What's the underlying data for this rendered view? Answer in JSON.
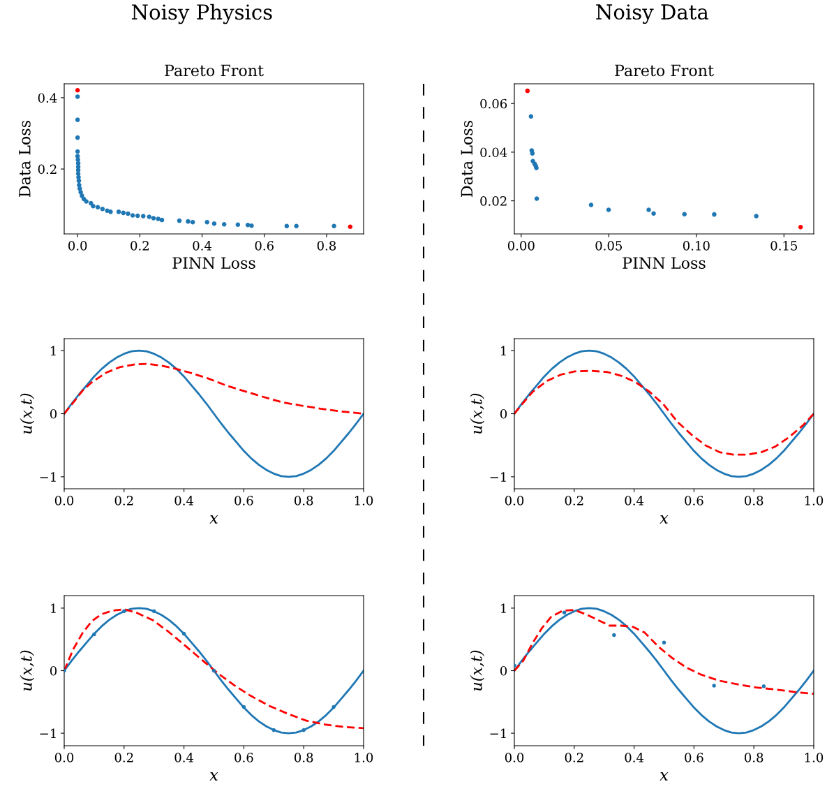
{
  "chart_data": [
    {
      "type": "scatter",
      "title": "Pareto Front",
      "xlabel": "PINN Loss",
      "ylabel": "Data Loss",
      "annotations": [
        "Noisy Physics"
      ],
      "xlim": [
        -0.043,
        0.919
      ],
      "ylim": [
        0.018,
        0.439
      ],
      "xticks": [
        {
          "value": 0,
          "label": "0.0"
        },
        {
          "value": 0.2,
          "label": "0.2"
        },
        {
          "value": 0.4,
          "label": "0.4"
        },
        {
          "value": 0.6,
          "label": "0.6"
        },
        {
          "value": 0.8,
          "label": "0.8"
        }
      ],
      "yticks": [
        0.2,
        0.4
      ],
      "grid": false,
      "marker": "circle",
      "series": [
        {
          "color": "#1f77b4",
          "x": [
            0,
            0,
            0,
            0,
            0,
            0.001,
            0.002,
            0.002,
            0.002,
            0.002,
            0.003,
            0.004,
            0.005,
            0.007,
            0.01,
            0.014,
            0.02,
            0.028,
            0.043,
            0.05,
            0.065,
            0.08,
            0.095,
            0.106,
            0.132,
            0.147,
            0.162,
            0.177,
            0.193,
            0.211,
            0.23,
            0.244,
            0.259,
            0.271,
            0.327,
            0.355,
            0.37,
            0.416,
            0.439,
            0.471,
            0.515,
            0.547,
            0.559,
            0.672,
            0.703,
            0.824
          ],
          "values": [
            0.403,
            0.338,
            0.288,
            0.249,
            0.236,
            0.226,
            0.216,
            0.206,
            0.197,
            0.187,
            0.177,
            0.167,
            0.155,
            0.145,
            0.135,
            0.125,
            0.116,
            0.109,
            0.104,
            0.096,
            0.093,
            0.088,
            0.083,
            0.08,
            0.08,
            0.077,
            0.075,
            0.07,
            0.069,
            0.068,
            0.066,
            0.062,
            0.06,
            0.057,
            0.055,
            0.053,
            0.051,
            0.051,
            0.047,
            0.045,
            0.044,
            0.043,
            0.041,
            0.04,
            0.04,
            0.04
          ]
        },
        {
          "color": "#ff0000",
          "x": [
            0.0,
            0.876
          ],
          "values": [
            0.421,
            0.038
          ]
        }
      ]
    },
    {
      "type": "scatter",
      "title": "Pareto Front",
      "xlabel": "PINN Loss",
      "ylabel": "Data Loss",
      "annotations": [
        "Noisy Data"
      ],
      "xlim": [
        -0.0039,
        0.167
      ],
      "ylim": [
        0.0064,
        0.0681
      ],
      "xticks": [
        {
          "value": 0,
          "label": "0.00"
        },
        0.05,
        {
          "value": 0.1,
          "label": "0.10"
        },
        0.15
      ],
      "yticks": [
        0.02,
        0.04,
        0.06
      ],
      "grid": false,
      "marker": "circle",
      "series": [
        {
          "color": "#1f77b4",
          "x": [
            0.0056,
            0.006,
            0.0064,
            0.0067,
            0.0077,
            0.0083,
            0.0087,
            0.0089,
            0.0399,
            0.0499,
            0.0728,
            0.0756,
            0.0932,
            0.1102,
            0.1342
          ],
          "values": [
            0.0547,
            0.0407,
            0.0395,
            0.0363,
            0.0352,
            0.0344,
            0.0335,
            0.0209,
            0.0183,
            0.0163,
            0.0163,
            0.0148,
            0.0145,
            0.0144,
            0.0137
          ]
        },
        {
          "color": "#ff0000",
          "x": [
            0.0036,
            0.1595
          ],
          "values": [
            0.0652,
            0.0092
          ]
        }
      ]
    },
    {
      "type": "line",
      "xlabel": "x",
      "ylabel": "u(x,t)",
      "xlim": [
        0,
        1
      ],
      "ylim": [
        -1.19,
        1.19
      ],
      "xticks": [
        {
          "value": 0,
          "label": "0.0"
        },
        {
          "value": 0.2,
          "label": "0.2"
        },
        {
          "value": 0.4,
          "label": "0.4"
        },
        {
          "value": 0.6,
          "label": "0.6"
        },
        {
          "value": 0.8,
          "label": "0.8"
        },
        {
          "value": 1,
          "label": "1.0"
        }
      ],
      "yticks": [
        -1,
        0,
        1
      ],
      "grid": false,
      "marker": "none",
      "series": [
        {
          "color": "#1f77b4",
          "line_style": "solid",
          "x": [
            0,
            0.025,
            0.05,
            0.075,
            0.1,
            0.125,
            0.15,
            0.175,
            0.2,
            0.225,
            0.25,
            0.275,
            0.3,
            0.325,
            0.35,
            0.375,
            0.4,
            0.425,
            0.45,
            0.475,
            0.5,
            0.525,
            0.55,
            0.575,
            0.6,
            0.625,
            0.65,
            0.675,
            0.7,
            0.725,
            0.75,
            0.775,
            0.8,
            0.825,
            0.85,
            0.875,
            0.9,
            0.925,
            0.95,
            0.975,
            1
          ],
          "values": [
            0,
            0.16,
            0.31,
            0.45,
            0.59,
            0.71,
            0.81,
            0.89,
            0.95,
            0.99,
            1,
            0.99,
            0.95,
            0.89,
            0.81,
            0.71,
            0.59,
            0.45,
            0.31,
            0.16,
            0,
            -0.16,
            -0.31,
            -0.45,
            -0.59,
            -0.71,
            -0.81,
            -0.89,
            -0.95,
            -0.99,
            -1,
            -0.99,
            -0.95,
            -0.89,
            -0.81,
            -0.71,
            -0.59,
            -0.45,
            -0.31,
            -0.16,
            0
          ]
        },
        {
          "color": "#ff0000",
          "line_style": "dashed",
          "x": [
            0,
            0.031,
            0.062,
            0.093,
            0.14,
            0.187,
            0.233,
            0.28,
            0.327,
            0.374,
            0.42,
            0.48,
            0.545,
            0.607,
            0.67,
            0.73,
            0.79,
            0.856,
            0.918,
            1
          ],
          "values": [
            0,
            0.18,
            0.37,
            0.5,
            0.65,
            0.74,
            0.78,
            0.79,
            0.76,
            0.71,
            0.65,
            0.56,
            0.44,
            0.35,
            0.26,
            0.18,
            0.13,
            0.08,
            0.04,
            0
          ]
        }
      ]
    },
    {
      "type": "line",
      "xlabel": "x",
      "ylabel": "u(x,t)",
      "xlim": [
        0,
        1
      ],
      "ylim": [
        -1.19,
        1.19
      ],
      "xticks": [
        {
          "value": 0,
          "label": "0.0"
        },
        {
          "value": 0.2,
          "label": "0.2"
        },
        {
          "value": 0.4,
          "label": "0.4"
        },
        {
          "value": 0.6,
          "label": "0.6"
        },
        {
          "value": 0.8,
          "label": "0.8"
        },
        {
          "value": 1,
          "label": "1.0"
        }
      ],
      "yticks": [
        -1,
        0,
        1
      ],
      "grid": false,
      "marker": "none",
      "series": [
        {
          "color": "#1f77b4",
          "line_style": "solid",
          "x": [
            0,
            0.025,
            0.05,
            0.075,
            0.1,
            0.125,
            0.15,
            0.175,
            0.2,
            0.225,
            0.25,
            0.275,
            0.3,
            0.325,
            0.35,
            0.375,
            0.4,
            0.425,
            0.45,
            0.475,
            0.5,
            0.525,
            0.55,
            0.575,
            0.6,
            0.625,
            0.65,
            0.675,
            0.7,
            0.725,
            0.75,
            0.775,
            0.8,
            0.825,
            0.85,
            0.875,
            0.9,
            0.925,
            0.95,
            0.975,
            1
          ],
          "values": [
            0,
            0.16,
            0.31,
            0.45,
            0.59,
            0.71,
            0.81,
            0.89,
            0.95,
            0.99,
            1,
            0.99,
            0.95,
            0.89,
            0.81,
            0.71,
            0.59,
            0.45,
            0.31,
            0.16,
            0,
            -0.16,
            -0.31,
            -0.45,
            -0.59,
            -0.71,
            -0.81,
            -0.89,
            -0.95,
            -0.99,
            -1,
            -0.99,
            -0.95,
            -0.89,
            -0.81,
            -0.71,
            -0.59,
            -0.45,
            -0.31,
            -0.16,
            0
          ]
        },
        {
          "color": "#ff0000",
          "line_style": "dashed",
          "x": [
            0,
            0.031,
            0.062,
            0.109,
            0.156,
            0.202,
            0.257,
            0.311,
            0.358,
            0.405,
            0.451,
            0.498,
            0.545,
            0.591,
            0.638,
            0.685,
            0.732,
            0.778,
            0.825,
            0.872,
            0.918,
            0.965,
            1
          ],
          "values": [
            0,
            0.18,
            0.35,
            0.52,
            0.62,
            0.67,
            0.68,
            0.66,
            0.6,
            0.5,
            0.35,
            0.15,
            -0.13,
            -0.33,
            -0.5,
            -0.61,
            -0.65,
            -0.65,
            -0.61,
            -0.52,
            -0.37,
            -0.18,
            0
          ]
        }
      ]
    },
    {
      "type": "line",
      "xlabel": "x",
      "ylabel": "u(x,t)",
      "xlim": [
        0,
        1
      ],
      "ylim": [
        -1.2,
        1.2
      ],
      "xticks": [
        {
          "value": 0,
          "label": "0.0"
        },
        {
          "value": 0.2,
          "label": "0.2"
        },
        {
          "value": 0.4,
          "label": "0.4"
        },
        {
          "value": 0.6,
          "label": "0.6"
        },
        {
          "value": 0.8,
          "label": "0.8"
        },
        {
          "value": 1,
          "label": "1.0"
        }
      ],
      "yticks": [
        -1,
        0,
        1
      ],
      "grid": false,
      "marker": "none",
      "series": [
        {
          "color": "#1f77b4",
          "line_style": "solid",
          "x": [
            0,
            0.025,
            0.05,
            0.075,
            0.1,
            0.125,
            0.15,
            0.175,
            0.2,
            0.225,
            0.25,
            0.275,
            0.3,
            0.325,
            0.35,
            0.375,
            0.4,
            0.425,
            0.45,
            0.475,
            0.5,
            0.525,
            0.55,
            0.575,
            0.6,
            0.625,
            0.65,
            0.675,
            0.7,
            0.725,
            0.75,
            0.775,
            0.8,
            0.825,
            0.85,
            0.875,
            0.9,
            0.925,
            0.95,
            0.975,
            1
          ],
          "values": [
            0,
            0.16,
            0.31,
            0.45,
            0.59,
            0.71,
            0.81,
            0.89,
            0.95,
            0.99,
            1,
            0.99,
            0.95,
            0.89,
            0.81,
            0.71,
            0.59,
            0.45,
            0.31,
            0.16,
            0,
            -0.16,
            -0.31,
            -0.45,
            -0.59,
            -0.71,
            -0.81,
            -0.89,
            -0.95,
            -0.99,
            -1,
            -0.99,
            -0.95,
            -0.89,
            -0.81,
            -0.71,
            -0.59,
            -0.45,
            -0.31,
            -0.16,
            0
          ]
        },
        {
          "color": "#ff0000",
          "line_style": "dashed",
          "x": [
            0,
            0.03,
            0.061,
            0.092,
            0.123,
            0.162,
            0.201,
            0.24,
            0.295,
            0.349,
            0.404,
            0.458,
            0.513,
            0.567,
            0.622,
            0.684,
            0.747,
            0.809,
            0.871,
            0.934,
            1
          ],
          "values": [
            0,
            0.34,
            0.6,
            0.79,
            0.9,
            0.96,
            0.98,
            0.93,
            0.81,
            0.62,
            0.4,
            0.18,
            -0.04,
            -0.23,
            -0.4,
            -0.56,
            -0.69,
            -0.8,
            -0.86,
            -0.9,
            -0.92
          ]
        },
        {
          "type": "scatter",
          "color": "#1f77b4",
          "x": [
            0,
            0.1,
            0.2,
            0.3,
            0.4,
            0.5,
            0.6,
            0.7,
            0.8,
            0.9
          ],
          "values": [
            0,
            0.58,
            0.95,
            0.95,
            0.59,
            0,
            -0.58,
            -0.95,
            -0.95,
            -0.58
          ]
        }
      ]
    },
    {
      "type": "line",
      "xlabel": "x",
      "ylabel": "u(x,t)",
      "xlim": [
        0,
        1
      ],
      "ylim": [
        -1.2,
        1.2
      ],
      "xticks": [
        {
          "value": 0,
          "label": "0.0"
        },
        {
          "value": 0.2,
          "label": "0.2"
        },
        {
          "value": 0.4,
          "label": "0.4"
        },
        {
          "value": 0.6,
          "label": "0.6"
        },
        {
          "value": 0.8,
          "label": "0.8"
        },
        {
          "value": 1,
          "label": "1.0"
        }
      ],
      "yticks": [
        -1,
        0,
        1
      ],
      "grid": false,
      "marker": "none",
      "series": [
        {
          "color": "#1f77b4",
          "line_style": "solid",
          "x": [
            0,
            0.025,
            0.05,
            0.075,
            0.1,
            0.125,
            0.15,
            0.175,
            0.2,
            0.225,
            0.25,
            0.275,
            0.3,
            0.325,
            0.35,
            0.375,
            0.4,
            0.425,
            0.45,
            0.475,
            0.5,
            0.525,
            0.55,
            0.575,
            0.6,
            0.625,
            0.65,
            0.675,
            0.7,
            0.725,
            0.75,
            0.775,
            0.8,
            0.825,
            0.85,
            0.875,
            0.9,
            0.925,
            0.95,
            0.975,
            1
          ],
          "values": [
            0,
            0.16,
            0.31,
            0.45,
            0.59,
            0.71,
            0.81,
            0.89,
            0.95,
            0.99,
            1,
            0.99,
            0.95,
            0.89,
            0.81,
            0.71,
            0.59,
            0.45,
            0.31,
            0.16,
            0,
            -0.16,
            -0.31,
            -0.45,
            -0.59,
            -0.71,
            -0.81,
            -0.89,
            -0.95,
            -0.99,
            -1,
            -0.99,
            -0.95,
            -0.89,
            -0.81,
            -0.71,
            -0.59,
            -0.45,
            -0.31,
            -0.16,
            0
          ]
        },
        {
          "color": "#ff0000",
          "line_style": "dashed",
          "x": [
            0,
            0.03,
            0.061,
            0.092,
            0.123,
            0.162,
            0.201,
            0.24,
            0.279,
            0.318,
            0.357,
            0.396,
            0.435,
            0.482,
            0.528,
            0.575,
            0.622,
            0.684,
            0.747,
            0.809,
            0.871,
            0.934,
            1
          ],
          "values": [
            0,
            0.16,
            0.44,
            0.68,
            0.86,
            0.96,
            0.97,
            0.9,
            0.81,
            0.72,
            0.72,
            0.7,
            0.61,
            0.38,
            0.2,
            0.05,
            -0.06,
            -0.16,
            -0.22,
            -0.27,
            -0.3,
            -0.34,
            -0.37
          ]
        },
        {
          "type": "scatter",
          "color": "#1f77b4",
          "x": [
            0,
            0.167,
            0.333,
            0.5,
            0.667,
            0.833
          ],
          "values": [
            0.08,
            0.93,
            0.57,
            0.45,
            -0.24,
            -0.25
          ]
        }
      ]
    }
  ]
}
